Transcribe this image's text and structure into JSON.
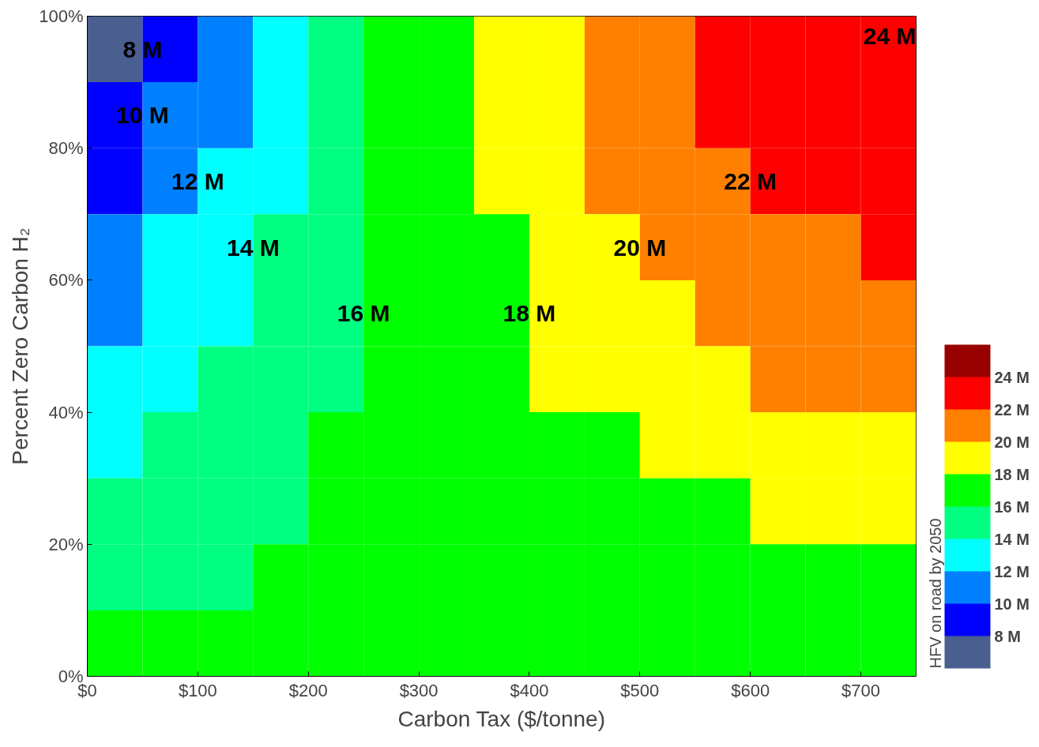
{
  "chart_data": {
    "type": "heatmap",
    "xlabel": "Carbon Tax ($/tonne)",
    "ylabel": "Percent Zero Carbon H₂",
    "clabel": "HFV on road by 2050",
    "x": [
      25,
      75,
      125,
      175,
      225,
      275,
      325,
      375,
      425,
      475,
      525,
      575,
      625,
      675,
      725
    ],
    "y": [
      95,
      85,
      75,
      65,
      55,
      45,
      35,
      25,
      15,
      5
    ],
    "cells": [
      [
        7,
        9,
        11,
        13,
        15,
        17,
        17,
        19,
        19,
        21,
        21,
        23,
        23,
        23,
        23
      ],
      [
        9,
        11,
        11,
        13,
        15,
        17,
        17,
        19,
        19,
        21,
        21,
        23,
        23,
        23,
        23
      ],
      [
        9,
        11,
        13,
        13,
        15,
        17,
        17,
        19,
        19,
        21,
        21,
        21,
        23,
        23,
        23
      ],
      [
        11,
        13,
        13,
        15,
        15,
        17,
        17,
        17,
        19,
        19,
        21,
        21,
        21,
        21,
        23
      ],
      [
        11,
        13,
        13,
        15,
        15,
        17,
        17,
        17,
        19,
        19,
        19,
        21,
        21,
        21,
        21
      ],
      [
        13,
        13,
        15,
        15,
        15,
        17,
        17,
        17,
        19,
        19,
        19,
        19,
        21,
        21,
        21
      ],
      [
        13,
        15,
        15,
        15,
        17,
        17,
        17,
        17,
        17,
        17,
        19,
        19,
        19,
        19,
        19
      ],
      [
        15,
        15,
        15,
        15,
        17,
        17,
        17,
        17,
        17,
        17,
        17,
        17,
        19,
        19,
        19
      ],
      [
        15,
        15,
        15,
        17,
        17,
        17,
        17,
        17,
        17,
        17,
        17,
        17,
        17,
        17,
        17
      ],
      [
        17,
        17,
        17,
        17,
        17,
        17,
        17,
        17,
        17,
        17,
        17,
        17,
        17,
        17,
        17
      ]
    ],
    "colors": [
      "#4a5f8f",
      "#0000ff",
      "#0080ff",
      "#00ffff",
      "#00ff80",
      "#00ff00",
      "#ffff00",
      "#ff8000",
      "#ff0000",
      "#990000"
    ],
    "clim": [
      6,
      26
    ],
    "cticks": [
      {
        "value": 8,
        "label": "8 M"
      },
      {
        "value": 10,
        "label": "10 M"
      },
      {
        "value": 12,
        "label": "12 M"
      },
      {
        "value": 14,
        "label": "14 M"
      },
      {
        "value": 16,
        "label": "16 M"
      },
      {
        "value": 18,
        "label": "18 M"
      },
      {
        "value": 20,
        "label": "20 M"
      },
      {
        "value": 22,
        "label": "22 M"
      },
      {
        "value": 24,
        "label": "24 M"
      }
    ],
    "xlim": [
      0,
      750
    ],
    "xticks": [
      {
        "value": 0,
        "label": "$0"
      },
      {
        "value": 100,
        "label": "$100"
      },
      {
        "value": 200,
        "label": "$200"
      },
      {
        "value": 300,
        "label": "$300"
      },
      {
        "value": 400,
        "label": "$400"
      },
      {
        "value": 500,
        "label": "$500"
      },
      {
        "value": 600,
        "label": "$600"
      },
      {
        "value": 700,
        "label": "$700"
      }
    ],
    "ylim": [
      0,
      100
    ],
    "yticks": [
      {
        "value": 0,
        "label": "0%"
      },
      {
        "value": 20,
        "label": "20%"
      },
      {
        "value": 40,
        "label": "40%"
      },
      {
        "value": 60,
        "label": "60%"
      },
      {
        "value": 80,
        "label": "80%"
      },
      {
        "value": 100,
        "label": "100%"
      }
    ],
    "annotations": [
      "8 M",
      "10 M",
      "12 M",
      "14 M",
      "16 M",
      "18 M",
      "20 M",
      "22 M",
      "24 M"
    ],
    "grid": false
  }
}
